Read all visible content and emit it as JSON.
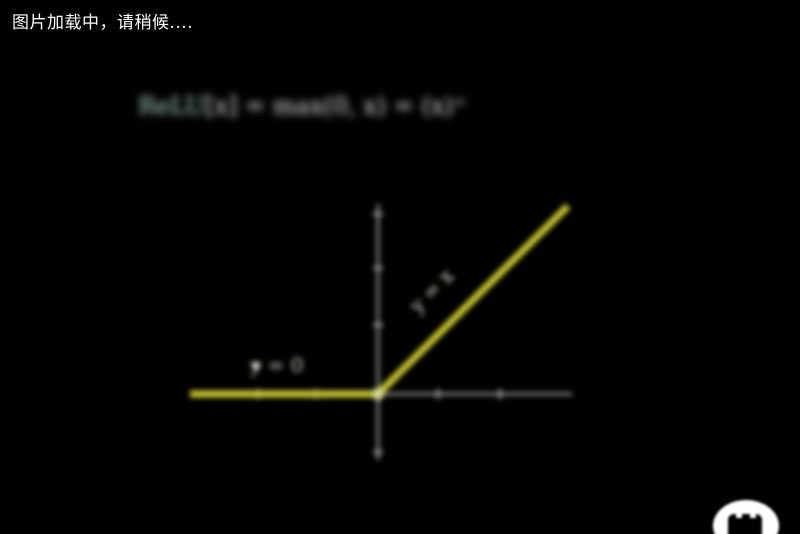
{
  "status": {
    "loading_text": "图片加载中，请稍候...."
  },
  "formula": {
    "function_name": "ReLU",
    "rest": "[x] = max(0, x) = (x)⁺"
  },
  "plot": {
    "left_label": "y = 0",
    "right_label": "y = x",
    "line_color": "#c8c830"
  },
  "icons": {
    "chat": "chat-bubble-icon"
  }
}
